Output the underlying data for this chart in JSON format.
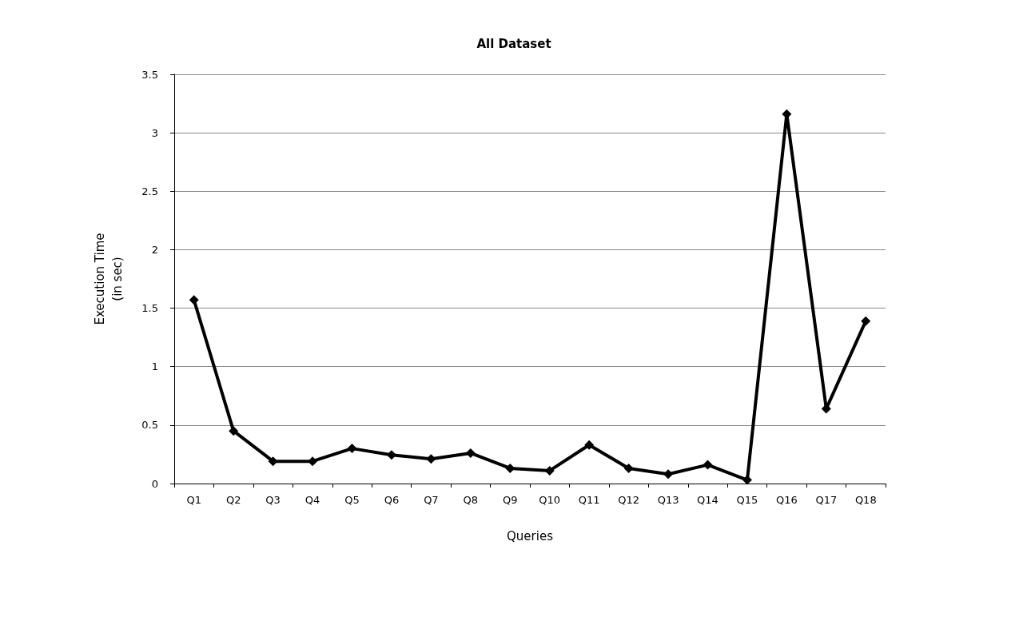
{
  "chart_data": {
    "type": "line",
    "title": "All Dataset",
    "xlabel": "Queries",
    "ylabel": "Execution Time\n(in sec)",
    "categories": [
      "Q1",
      "Q2",
      "Q3",
      "Q4",
      "Q5",
      "Q6",
      "Q7",
      "Q8",
      "Q9",
      "Q10",
      "Q11",
      "Q12",
      "Q13",
      "Q14",
      "Q15",
      "Q16",
      "Q17",
      "Q18"
    ],
    "series": [
      {
        "color": "#000000",
        "values": [
          1.57,
          0.45,
          0.19,
          0.19,
          0.3,
          0.245,
          0.21,
          0.26,
          0.13,
          0.11,
          0.33,
          0.13,
          0.08,
          0.16,
          0.03,
          3.16,
          0.64,
          1.39
        ]
      }
    ],
    "ylim": [
      0,
      3.5
    ],
    "yticks": [
      0,
      0.5,
      1,
      1.5,
      2,
      2.5,
      3,
      3.5
    ],
    "grid": "y",
    "marker": "diamond",
    "line_style": "solid"
  }
}
